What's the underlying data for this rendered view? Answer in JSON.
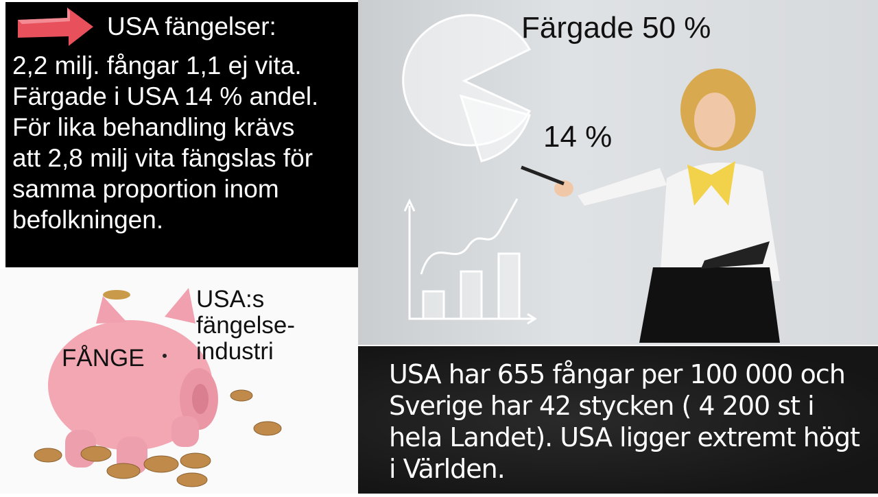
{
  "top_left": {
    "title": "USA fängelser:",
    "body": "2,2 milj. fångar 1,1 ej vita.\nFärgade i USA 14 % andel.\nFör lika behandling krävs\natt 2,8 milj vita fängslas för\nsamma proportion inom\nbefolkningen.",
    "arrow_color": "#e8505b"
  },
  "piggy": {
    "label_fange": "FÅNGE",
    "label_industry": "USA:s\nfängelse-\nindustri",
    "pig_color": "#f2a7b3"
  },
  "photo": {
    "label_50": "Färgade 50 %",
    "label_14": "14 %"
  },
  "board": {
    "text": "USA har 655 fångar per 100 000 och Sverige har 42 stycken ( 4 200 st i hela Landet). USA ligger extremt högt i Världen."
  }
}
